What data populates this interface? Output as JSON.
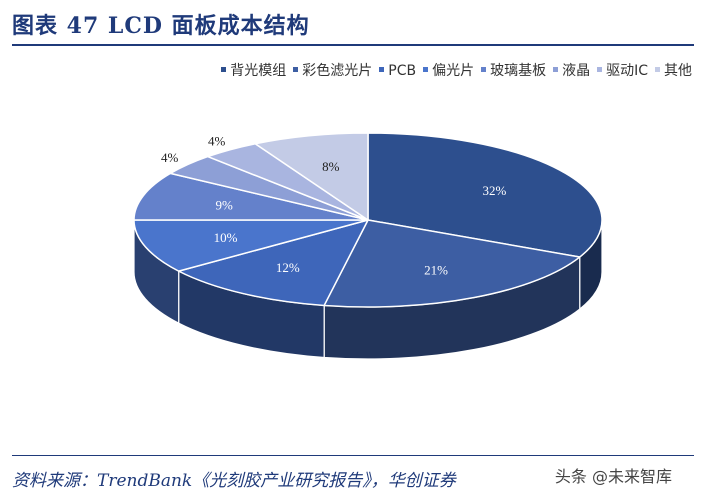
{
  "header": {
    "title": "图表 47 LCD 面板成本结构"
  },
  "chart_data": {
    "type": "pie",
    "title": "",
    "categories": [
      "背光模组",
      "彩色滤光片",
      "PCB",
      "偏光片",
      "玻璃基板",
      "液晶",
      "驱动IC",
      "其他"
    ],
    "values": [
      32,
      21,
      12,
      10,
      9,
      4,
      4,
      8
    ],
    "value_labels": [
      "32%",
      "21%",
      "12%",
      "10%",
      "9%",
      "4%",
      "4%",
      "8%"
    ],
    "colors": [
      "#2d4f8e",
      "#3d5ea3",
      "#3e66ba",
      "#4a75cc",
      "#6481cb",
      "#8d9fd6",
      "#a9b5e0",
      "#c3cbe6"
    ],
    "legend_position": "top-right"
  },
  "footer": {
    "source": "资料来源：TrendBank《光刻胶产业研究报告》，华创证券",
    "watermark": "头条 @未来智库"
  }
}
